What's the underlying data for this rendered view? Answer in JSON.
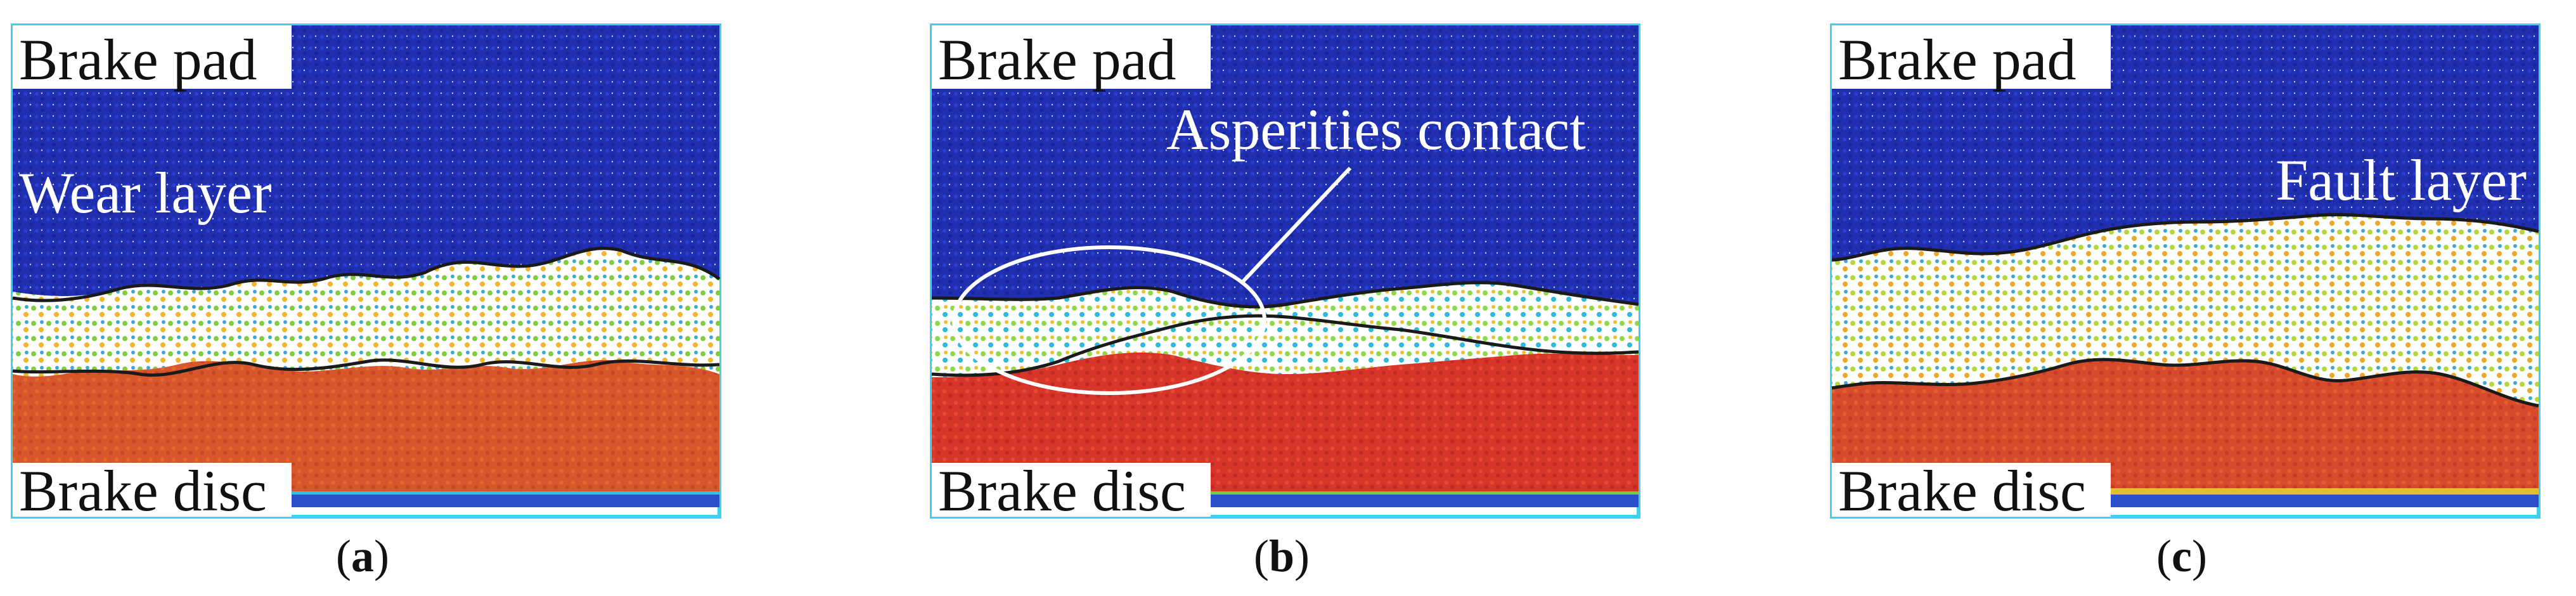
{
  "panels": [
    {
      "id": "a",
      "caption_letter": "a",
      "labels": {
        "top": "Brake pad",
        "bottom": "Brake disc",
        "annotation": "Wear layer"
      }
    },
    {
      "id": "b",
      "caption_letter": "b",
      "labels": {
        "top": "Brake pad",
        "bottom": "Brake disc",
        "annotation": "Asperities contact"
      }
    },
    {
      "id": "c",
      "caption_letter": "c",
      "labels": {
        "top": "Brake pad",
        "bottom": "Brake disc",
        "annotation": "Fault layer"
      }
    }
  ],
  "colors": {
    "pad_blue": "#1f2fb0",
    "disc_red": "#d8352a",
    "interface_white": "#ffffff",
    "frame_cyan": "#3fd0f0",
    "boundary_line": "#1a1a1a"
  }
}
